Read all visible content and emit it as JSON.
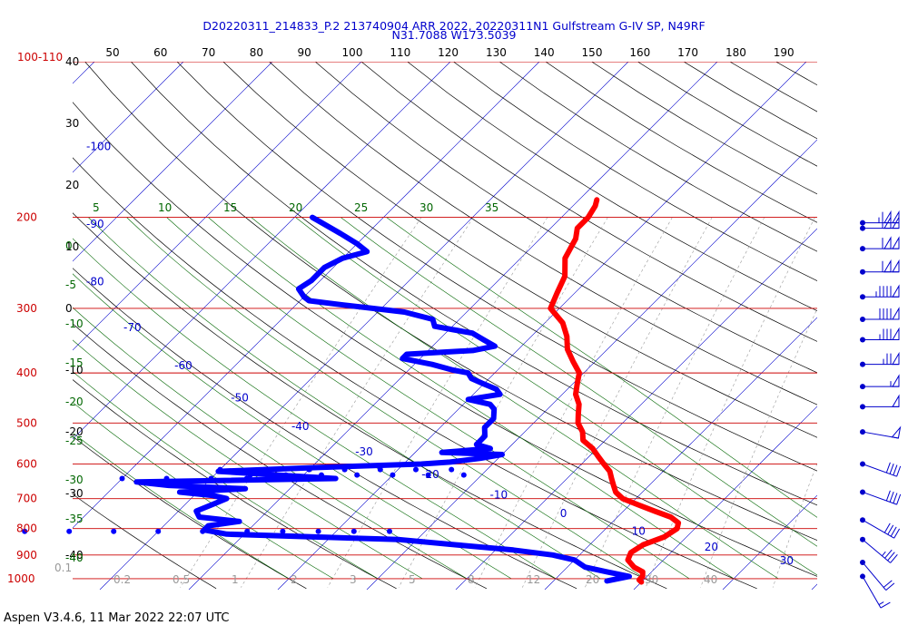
{
  "chart_data": {
    "type": "line",
    "title_line1": "D20220311_214833_P.2 213740904 ARR 2022, 20220311N1 Gulfstream G-IV SP, N49RF",
    "title_line2": "N31.7088 W173.5039",
    "footer": "Aspen V3.4.6, 11 Mar 2022  22:07 UTC",
    "colors": {
      "title": "#0000cc",
      "temperature": "#ff0000",
      "dewpoint": "#0000ff",
      "isobar": "#cc0000",
      "isotherm": "#0000cc",
      "dry_adiabat": "#000000",
      "mixing_ratio": "#006600",
      "moist_adiabat": "#888888"
    },
    "pressure_labels": [
      {
        "p": 200,
        "label": "200"
      },
      {
        "p": 300,
        "label": "300"
      },
      {
        "p": 400,
        "label": "400"
      },
      {
        "p": 500,
        "label": "500"
      },
      {
        "p": 600,
        "label": "600"
      },
      {
        "p": 700,
        "label": "700"
      },
      {
        "p": 800,
        "label": "800"
      },
      {
        "p": 900,
        "label": "900"
      },
      {
        "p": 1000,
        "label": "1000"
      }
    ],
    "top_left_label": "100-110",
    "top_axis_labels": [
      "50",
      "60",
      "70",
      "80",
      "90",
      "100",
      "110",
      "120",
      "130",
      "140",
      "150",
      "160",
      "170",
      "180",
      "190"
    ],
    "isotherm_labels": [
      "-100",
      "-90",
      "-80",
      "-70",
      "-60",
      "-50",
      "-40",
      "-30",
      "-20",
      "-10",
      "0",
      "10",
      "20",
      "30"
    ],
    "mixing_ratio_top_labels": [
      "5",
      "10",
      "15",
      "20",
      "25",
      "30",
      "35"
    ],
    "mixing_ratio_bottom_labels": [
      "0.1",
      "0.2",
      "0.5",
      "1",
      "2",
      "3",
      "5",
      "8",
      "12",
      "20",
      "30",
      "40"
    ],
    "left_black_labels": [
      "40",
      "30",
      "20",
      "10",
      "0",
      "-10",
      "-20",
      "-30",
      "-40"
    ],
    "left_green_labels": [
      "0",
      "-5",
      "-10",
      "-15",
      "-20",
      "-25",
      "-30",
      "-35",
      "-40"
    ],
    "temperature_profile": [
      [
        185,
        -38
      ],
      [
        190,
        -37.5
      ],
      [
        200,
        -37
      ],
      [
        210,
        -37
      ],
      [
        220,
        -36
      ],
      [
        240,
        -35
      ],
      [
        260,
        -33
      ],
      [
        280,
        -32
      ],
      [
        300,
        -31
      ],
      [
        320,
        -28
      ],
      [
        340,
        -26
      ],
      [
        360,
        -24.5
      ],
      [
        380,
        -22.5
      ],
      [
        400,
        -20.5
      ],
      [
        420,
        -19.5
      ],
      [
        440,
        -18.5
      ],
      [
        460,
        -17
      ],
      [
        480,
        -16
      ],
      [
        500,
        -15
      ],
      [
        520,
        -13.5
      ],
      [
        540,
        -12.5
      ],
      [
        560,
        -10.5
      ],
      [
        580,
        -9
      ],
      [
        600,
        -7.5
      ],
      [
        620,
        -6
      ],
      [
        640,
        -5
      ],
      [
        660,
        -4
      ],
      [
        680,
        -3
      ],
      [
        700,
        -1.5
      ],
      [
        720,
        1
      ],
      [
        740,
        3.5
      ],
      [
        760,
        6
      ],
      [
        780,
        7.5
      ],
      [
        800,
        8
      ],
      [
        830,
        7.5
      ],
      [
        860,
        6
      ],
      [
        890,
        5.5
      ],
      [
        920,
        6
      ],
      [
        950,
        7.5
      ],
      [
        970,
        9
      ],
      [
        990,
        9.5
      ],
      [
        1005,
        9.5
      ],
      [
        1015,
        10
      ]
    ],
    "dewpoint_profile": [
      [
        200,
        -68
      ],
      [
        215,
        -63
      ],
      [
        225,
        -60
      ],
      [
        233,
        -58
      ],
      [
        240,
        -60
      ],
      [
        250,
        -61
      ],
      [
        265,
        -61
      ],
      [
        275,
        -61.5
      ],
      [
        285,
        -60
      ],
      [
        290,
        -59
      ],
      [
        295,
        -55
      ],
      [
        300,
        -51
      ],
      [
        305,
        -47
      ],
      [
        315,
        -43
      ],
      [
        325,
        -42
      ],
      [
        330,
        -39.5
      ],
      [
        335,
        -37
      ],
      [
        345,
        -35
      ],
      [
        355,
        -33
      ],
      [
        362,
        -35
      ],
      [
        368,
        -42
      ],
      [
        375,
        -42
      ],
      [
        385,
        -38
      ],
      [
        395,
        -35
      ],
      [
        400,
        -33
      ],
      [
        410,
        -32
      ],
      [
        420,
        -30
      ],
      [
        430,
        -28
      ],
      [
        440,
        -27
      ],
      [
        450,
        -30
      ],
      [
        460,
        -27
      ],
      [
        470,
        -26
      ],
      [
        490,
        -25
      ],
      [
        510,
        -25
      ],
      [
        530,
        -24
      ],
      [
        550,
        -24
      ],
      [
        560,
        -22
      ],
      [
        570,
        -27
      ],
      [
        575,
        -20
      ],
      [
        585,
        -22
      ],
      [
        595,
        -25
      ],
      [
        600,
        -28
      ],
      [
        610,
        -40
      ],
      [
        620,
        -50
      ],
      [
        630,
        -43
      ],
      [
        640,
        -36
      ],
      [
        650,
        -58
      ],
      [
        660,
        -54
      ],
      [
        670,
        -45
      ],
      [
        680,
        -52
      ],
      [
        690,
        -48
      ],
      [
        700,
        -46
      ],
      [
        720,
        -47
      ],
      [
        740,
        -48
      ],
      [
        760,
        -47
      ],
      [
        775,
        -42
      ],
      [
        790,
        -45
      ],
      [
        805,
        -45
      ],
      [
        820,
        -42
      ],
      [
        840,
        -22
      ],
      [
        860,
        -15
      ],
      [
        880,
        -8
      ],
      [
        900,
        -3
      ],
      [
        920,
        0
      ],
      [
        950,
        2
      ],
      [
        970,
        5
      ],
      [
        990,
        8
      ],
      [
        1010,
        6
      ]
    ],
    "dewpoint_scatter": [
      [
        615,
        -50
      ],
      [
        615,
        -45
      ],
      [
        615,
        -40
      ],
      [
        615,
        -36
      ],
      [
        615,
        -32
      ],
      [
        615,
        -28
      ],
      [
        615,
        -24
      ],
      [
        630,
        -46
      ],
      [
        630,
        -42
      ],
      [
        630,
        -38
      ],
      [
        630,
        -34
      ],
      [
        630,
        -30
      ],
      [
        630,
        -26
      ],
      [
        630,
        -22
      ],
      [
        640,
        -60
      ],
      [
        640,
        -55
      ],
      [
        640,
        -50
      ],
      [
        640,
        -46
      ],
      [
        640,
        -41
      ],
      [
        810,
        -70
      ],
      [
        810,
        -65
      ],
      [
        810,
        -60
      ],
      [
        810,
        -55
      ],
      [
        810,
        -50
      ],
      [
        810,
        -45
      ],
      [
        810,
        -40
      ],
      [
        810,
        -36
      ],
      [
        810,
        -32
      ],
      [
        810,
        -28
      ],
      [
        810,
        -24
      ]
    ],
    "wind_barbs": [
      {
        "p": 205,
        "speed": 115,
        "dir": 270
      },
      {
        "p": 210,
        "speed": 105,
        "dir": 270
      },
      {
        "p": 230,
        "speed": 110,
        "dir": 270
      },
      {
        "p": 255,
        "speed": 110,
        "dir": 270
      },
      {
        "p": 285,
        "speed": 95,
        "dir": 270
      },
      {
        "p": 315,
        "speed": 90,
        "dir": 270
      },
      {
        "p": 345,
        "speed": 85,
        "dir": 270
      },
      {
        "p": 385,
        "speed": 75,
        "dir": 270
      },
      {
        "p": 425,
        "speed": 55,
        "dir": 270
      },
      {
        "p": 465,
        "speed": 50,
        "dir": 270
      },
      {
        "p": 520,
        "speed": 50,
        "dir": 280
      },
      {
        "p": 600,
        "speed": 40,
        "dir": 290
      },
      {
        "p": 680,
        "speed": 40,
        "dir": 290
      },
      {
        "p": 770,
        "speed": 40,
        "dir": 300
      },
      {
        "p": 840,
        "speed": 35,
        "dir": 310
      },
      {
        "p": 930,
        "speed": 20,
        "dir": 320
      },
      {
        "p": 990,
        "speed": 15,
        "dir": 330
      }
    ]
  }
}
